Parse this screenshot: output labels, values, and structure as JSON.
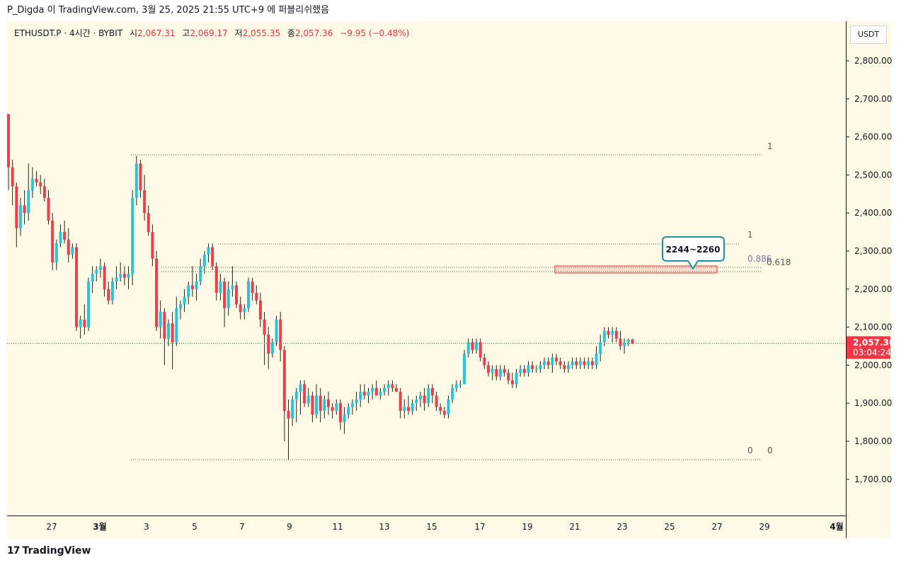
{
  "header": {
    "publish_text": "P_Digda 이 TradingView.com, 3월 25, 2025 21:55 UTC+9 에 퍼블리쉬했음"
  },
  "legend": {
    "symbol": "ETHUSDT.P · 4시간 · BYBIT",
    "open_label": "시",
    "open_value": "2,067.31",
    "high_label": "고",
    "high_value": "2,069.17",
    "low_label": "저",
    "low_value": "2,055.35",
    "close_label": "종",
    "close_value": "2,057.36",
    "change": "−9.95 (−0.48%)"
  },
  "price_axis": {
    "currency": "USDT",
    "ticks": [
      "2,800.00",
      "2,700.00",
      "2,600.00",
      "2,500.00",
      "2,400.00",
      "2,300.00",
      "2,200.00",
      "2,100.00",
      "2,000.00",
      "1,900.00",
      "1,800.00",
      "1,700.00"
    ],
    "current_price": "2,057.36",
    "countdown": "03:04:24"
  },
  "time_axis": {
    "ticks": [
      "27",
      "3월",
      "3",
      "5",
      "7",
      "9",
      "11",
      "13",
      "15",
      "17",
      "19",
      "21",
      "23",
      "25",
      "27",
      "29",
      "4월"
    ]
  },
  "annotations": {
    "callout": "2244~2260",
    "fib_big_1": "1",
    "fib_big_0": "0",
    "fib_small_1": "1",
    "fib_small_0886": "0.886",
    "fib_small_0618": "0.618",
    "fib_small_0": "0"
  },
  "colors": {
    "up": "#26c6da",
    "down": "#ef3e4a",
    "background": "#fffae6",
    "price_line": "#f23645"
  },
  "footer": {
    "brand": "TradingView",
    "logo_glyph": "17"
  },
  "chart_data": {
    "type": "candlestick",
    "title": "ETHUSDT.P · 4시간 · BYBIT",
    "ylim": [
      1700,
      2800
    ],
    "last_close": 2057.36,
    "ohlc": [
      [
        2660,
        2660,
        2460,
        2520
      ],
      [
        2520,
        2540,
        2420,
        2470
      ],
      [
        2470,
        2480,
        2310,
        2360
      ],
      [
        2360,
        2440,
        2340,
        2420
      ],
      [
        2420,
        2460,
        2370,
        2400
      ],
      [
        2400,
        2530,
        2380,
        2460
      ],
      [
        2460,
        2520,
        2440,
        2490
      ],
      [
        2490,
        2510,
        2470,
        2480
      ],
      [
        2480,
        2500,
        2450,
        2470
      ],
      [
        2470,
        2490,
        2430,
        2440
      ],
      [
        2440,
        2460,
        2370,
        2380
      ],
      [
        2380,
        2400,
        2250,
        2270
      ],
      [
        2270,
        2330,
        2250,
        2320
      ],
      [
        2320,
        2370,
        2310,
        2350
      ],
      [
        2350,
        2380,
        2320,
        2330
      ],
      [
        2330,
        2360,
        2270,
        2290
      ],
      [
        2290,
        2320,
        2280,
        2310
      ],
      [
        2310,
        2320,
        2090,
        2100
      ],
      [
        2100,
        2130,
        2070,
        2120
      ],
      [
        2120,
        2160,
        2080,
        2100
      ],
      [
        2100,
        2230,
        2090,
        2220
      ],
      [
        2220,
        2260,
        2190,
        2240
      ],
      [
        2240,
        2260,
        2220,
        2250
      ],
      [
        2250,
        2280,
        2230,
        2260
      ],
      [
        2260,
        2270,
        2180,
        2200
      ],
      [
        2200,
        2220,
        2160,
        2170
      ],
      [
        2170,
        2230,
        2160,
        2220
      ],
      [
        2220,
        2260,
        2200,
        2230
      ],
      [
        2230,
        2270,
        2220,
        2240
      ],
      [
        2240,
        2260,
        2210,
        2230
      ],
      [
        2230,
        2260,
        2200,
        2240
      ],
      [
        2240,
        2460,
        2210,
        2440
      ],
      [
        2440,
        2550,
        2420,
        2530
      ],
      [
        2530,
        2540,
        2440,
        2460
      ],
      [
        2460,
        2500,
        2380,
        2400
      ],
      [
        2400,
        2420,
        2340,
        2350
      ],
      [
        2350,
        2370,
        2260,
        2280
      ],
      [
        2280,
        2300,
        2090,
        2100
      ],
      [
        2100,
        2170,
        2070,
        2140
      ],
      [
        2140,
        2150,
        2000,
        2070
      ],
      [
        2070,
        2120,
        2050,
        2110
      ],
      [
        2110,
        2140,
        1990,
        2060
      ],
      [
        2060,
        2180,
        2050,
        2150
      ],
      [
        2150,
        2170,
        2120,
        2160
      ],
      [
        2160,
        2200,
        2140,
        2180
      ],
      [
        2180,
        2220,
        2160,
        2210
      ],
      [
        2210,
        2260,
        2180,
        2200
      ],
      [
        2200,
        2240,
        2170,
        2220
      ],
      [
        2220,
        2280,
        2210,
        2260
      ],
      [
        2260,
        2300,
        2240,
        2290
      ],
      [
        2290,
        2320,
        2270,
        2310
      ],
      [
        2310,
        2320,
        2250,
        2260
      ],
      [
        2260,
        2270,
        2170,
        2190
      ],
      [
        2190,
        2240,
        2170,
        2220
      ],
      [
        2220,
        2230,
        2100,
        2150
      ],
      [
        2150,
        2220,
        2130,
        2200
      ],
      [
        2200,
        2260,
        2180,
        2210
      ],
      [
        2210,
        2220,
        2150,
        2160
      ],
      [
        2160,
        2180,
        2120,
        2140
      ],
      [
        2140,
        2160,
        2120,
        2150
      ],
      [
        2150,
        2230,
        2140,
        2220
      ],
      [
        2220,
        2230,
        2170,
        2190
      ],
      [
        2190,
        2210,
        2160,
        2170
      ],
      [
        2170,
        2190,
        2100,
        2120
      ],
      [
        2120,
        2140,
        2000,
        2080
      ],
      [
        2080,
        2100,
        1990,
        2030
      ],
      [
        2030,
        2070,
        2020,
        2060
      ],
      [
        2060,
        2130,
        2050,
        2120
      ],
      [
        2120,
        2140,
        2010,
        2040
      ],
      [
        2040,
        2050,
        1800,
        1880
      ],
      [
        1880,
        1910,
        1750,
        1860
      ],
      [
        1860,
        1920,
        1840,
        1910
      ],
      [
        1910,
        1940,
        1850,
        1930
      ],
      [
        1930,
        1960,
        1870,
        1950
      ],
      [
        1950,
        1960,
        1890,
        1900
      ],
      [
        1900,
        1940,
        1890,
        1920
      ],
      [
        1920,
        1930,
        1850,
        1870
      ],
      [
        1870,
        1950,
        1860,
        1920
      ],
      [
        1920,
        1940,
        1850,
        1880
      ],
      [
        1880,
        1920,
        1860,
        1910
      ],
      [
        1910,
        1930,
        1870,
        1890
      ],
      [
        1890,
        1900,
        1860,
        1880
      ],
      [
        1880,
        1910,
        1870,
        1900
      ],
      [
        1900,
        1910,
        1830,
        1850
      ],
      [
        1850,
        1890,
        1820,
        1870
      ],
      [
        1870,
        1900,
        1860,
        1890
      ],
      [
        1890,
        1910,
        1870,
        1900
      ],
      [
        1900,
        1930,
        1880,
        1910
      ],
      [
        1910,
        1950,
        1890,
        1930
      ],
      [
        1930,
        1950,
        1910,
        1920
      ],
      [
        1920,
        1940,
        1900,
        1930
      ],
      [
        1930,
        1950,
        1910,
        1940
      ],
      [
        1940,
        1960,
        1920,
        1920
      ],
      [
        1920,
        1940,
        1910,
        1930
      ],
      [
        1930,
        1950,
        1920,
        1940
      ],
      [
        1940,
        1960,
        1920,
        1950
      ],
      [
        1950,
        1960,
        1930,
        1940
      ],
      [
        1940,
        1950,
        1930,
        1930
      ],
      [
        1930,
        1940,
        1860,
        1880
      ],
      [
        1880,
        1910,
        1860,
        1890
      ],
      [
        1890,
        1920,
        1870,
        1880
      ],
      [
        1880,
        1910,
        1870,
        1900
      ],
      [
        1900,
        1920,
        1880,
        1910
      ],
      [
        1910,
        1930,
        1890,
        1920
      ],
      [
        1920,
        1940,
        1880,
        1900
      ],
      [
        1900,
        1950,
        1890,
        1940
      ],
      [
        1940,
        1950,
        1900,
        1920
      ],
      [
        1920,
        1930,
        1880,
        1890
      ],
      [
        1890,
        1900,
        1870,
        1880
      ],
      [
        1880,
        1890,
        1860,
        1870
      ],
      [
        1870,
        1920,
        1860,
        1910
      ],
      [
        1910,
        1950,
        1900,
        1940
      ],
      [
        1940,
        1960,
        1930,
        1950
      ],
      [
        1950,
        1960,
        1940,
        1950
      ],
      [
        1950,
        2040,
        1950,
        2030
      ],
      [
        2030,
        2070,
        2020,
        2060
      ],
      [
        2060,
        2070,
        2030,
        2040
      ],
      [
        2040,
        2070,
        2030,
        2060
      ],
      [
        2060,
        2070,
        2010,
        2020
      ],
      [
        2020,
        2030,
        1990,
        2000
      ],
      [
        2000,
        2010,
        1970,
        1980
      ],
      [
        1980,
        2000,
        1960,
        1990
      ],
      [
        1990,
        2000,
        1960,
        1970
      ],
      [
        1970,
        2000,
        1960,
        1990
      ],
      [
        1990,
        2000,
        1970,
        1980
      ],
      [
        1980,
        1990,
        1950,
        1960
      ],
      [
        1960,
        1980,
        1940,
        1950
      ],
      [
        1950,
        1990,
        1940,
        1980
      ],
      [
        1980,
        2000,
        1970,
        1990
      ],
      [
        1990,
        2000,
        1970,
        1980
      ],
      [
        1980,
        2010,
        1970,
        2000
      ],
      [
        2000,
        2010,
        1980,
        1990
      ],
      [
        1990,
        2000,
        1980,
        1990
      ],
      [
        1990,
        2010,
        1980,
        2000
      ],
      [
        2000,
        2020,
        1990,
        2010
      ],
      [
        2010,
        2020,
        1990,
        2000
      ],
      [
        2000,
        2030,
        1980,
        2020
      ],
      [
        2020,
        2030,
        2000,
        2010
      ],
      [
        2010,
        2020,
        1990,
        2000
      ],
      [
        2000,
        2010,
        1980,
        1990
      ],
      [
        1990,
        2010,
        1980,
        2000
      ],
      [
        2000,
        2020,
        1990,
        2010
      ],
      [
        2010,
        2020,
        1990,
        2000
      ],
      [
        2000,
        2020,
        1990,
        2010
      ],
      [
        2010,
        2020,
        1990,
        2000
      ],
      [
        2000,
        2020,
        1990,
        2010
      ],
      [
        2010,
        2020,
        1990,
        2000
      ],
      [
        2000,
        2050,
        1990,
        2030
      ],
      [
        2030,
        2080,
        2010,
        2060
      ],
      [
        2060,
        2100,
        2050,
        2090
      ],
      [
        2090,
        2100,
        2070,
        2080
      ],
      [
        2080,
        2100,
        2060,
        2090
      ],
      [
        2090,
        2100,
        2060,
        2070
      ],
      [
        2070,
        2090,
        2040,
        2050
      ],
      [
        2050,
        2070,
        2030,
        2060
      ],
      [
        2060,
        2070,
        2050,
        2067
      ],
      [
        2067.31,
        2069.17,
        2055.35,
        2057.36
      ]
    ]
  }
}
